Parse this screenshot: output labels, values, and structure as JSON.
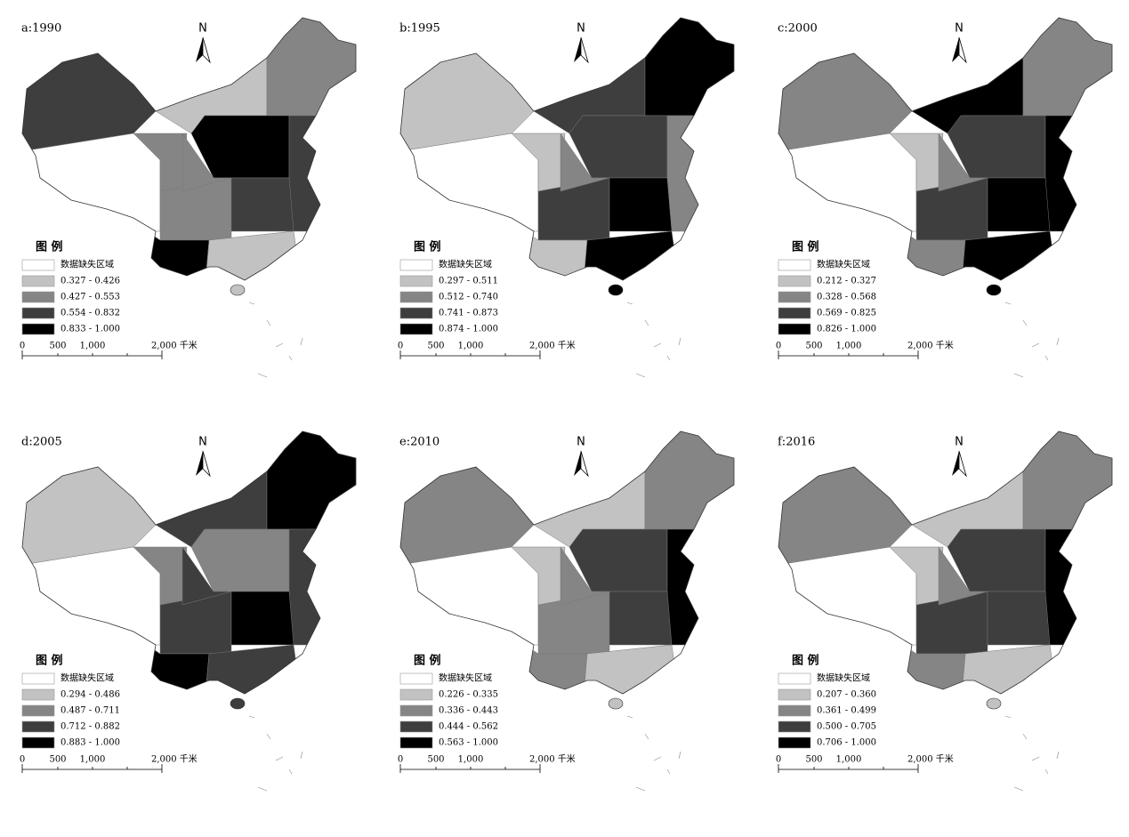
{
  "panels": [
    {
      "label": "a:1990",
      "north": "N",
      "legend_title": "图 例",
      "legend": [
        "数据缺失区域",
        "0.327 - 0.426",
        "0.427 - 0.553",
        "0.554 - 0.832",
        "0.833 - 1.000"
      ],
      "scale": [
        "0",
        "500",
        "1,000",
        "2,000 千米"
      ]
    },
    {
      "label": "b:1995",
      "north": "N",
      "legend_title": "图 例",
      "legend": [
        "数据缺失区域",
        "0.297 - 0.511",
        "0.512 - 0.740",
        "0.741 - 0.873",
        "0.874 - 1.000"
      ],
      "scale": [
        "0",
        "500",
        "1,000",
        "2,000 千米"
      ]
    },
    {
      "label": "c:2000",
      "north": "N",
      "legend_title": "图 例",
      "legend": [
        "数据缺失区域",
        "0.212 - 0.327",
        "0.328 - 0.568",
        "0.569 - 0.825",
        "0.826 - 1.000"
      ],
      "scale": [
        "0",
        "500",
        "1,000",
        "2,000 千米"
      ]
    },
    {
      "label": "d:2005",
      "north": "N",
      "legend_title": "图 例",
      "legend": [
        "数据缺失区域",
        "0.294 - 0.486",
        "0.487 - 0.711",
        "0.712 - 0.882",
        "0.883 - 1.000"
      ],
      "scale": [
        "0",
        "500",
        "1,000",
        "2,000 千米"
      ]
    },
    {
      "label": "e:2010",
      "north": "N",
      "legend_title": "图 例",
      "legend": [
        "数据缺失区域",
        "0.226 - 0.335",
        "0.336 - 0.443",
        "0.444 - 0.562",
        "0.563 - 1.000"
      ],
      "scale": [
        "0",
        "500",
        "1,000",
        "2,000 千米"
      ]
    },
    {
      "label": "f:2016",
      "north": "N",
      "legend_title": "图 例",
      "legend": [
        "数据缺失区域",
        "0.207 - 0.360",
        "0.361 - 0.499",
        "0.500 - 0.705",
        "0.706 - 1.000"
      ],
      "scale": [
        "0",
        "500",
        "1,000",
        "2,000 千米"
      ]
    }
  ]
}
